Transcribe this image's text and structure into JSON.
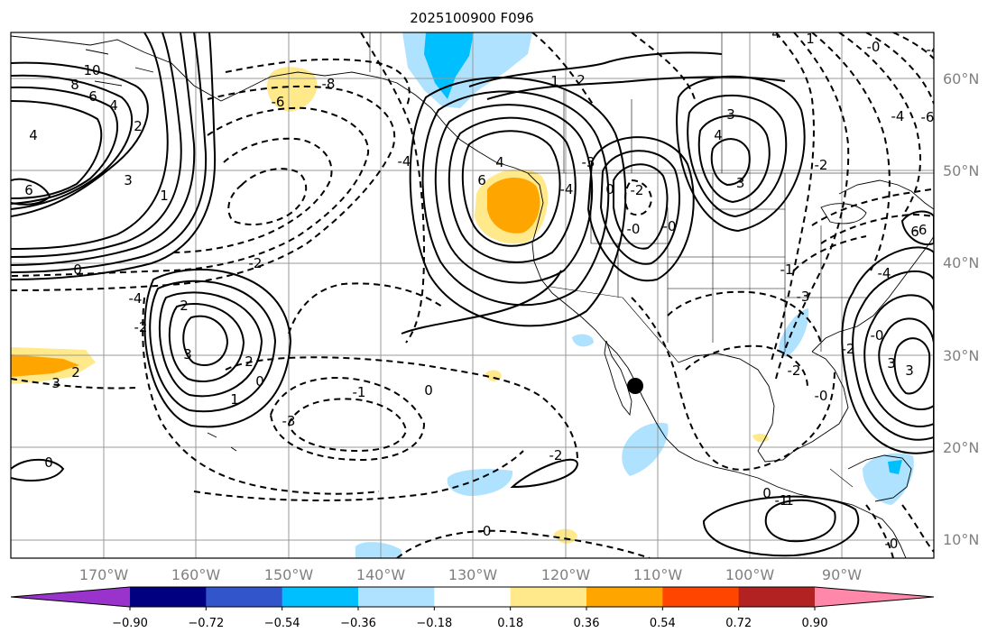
{
  "title": "2025100900 F096",
  "map": {
    "lat_labels": [
      "60°N",
      "50°N",
      "40°N",
      "30°N",
      "20°N",
      "10°N"
    ],
    "lon_labels": [
      "170°W",
      "160°W",
      "150°W",
      "140°W",
      "130°W",
      "120°W",
      "110°W",
      "100°W",
      "90°W"
    ],
    "contour_labels": [
      "10",
      "8",
      "6",
      "4",
      "2",
      "6",
      "4",
      "3",
      "1",
      "0",
      "2",
      "0",
      "3",
      "2",
      "1",
      "2",
      "3",
      "0",
      "-8",
      "-6",
      "-4",
      "-2",
      "-4",
      "-2",
      "-3",
      "-1",
      "0",
      "-2",
      "-0",
      "-1",
      "-2",
      "-3",
      "-4",
      "-6",
      "2",
      "1",
      "-0",
      "-3",
      "-4",
      "-2",
      "6",
      "4",
      "3",
      "4",
      "3",
      "6",
      "-0",
      "0",
      "-0",
      "1",
      "0",
      "3",
      "-0",
      "-2",
      "-1",
      "-0",
      "-0",
      "1",
      "-2",
      "-4",
      "-6",
      "4",
      "-3",
      "-4"
    ],
    "marker": "black-dot"
  },
  "colorbar": {
    "tick_labels": [
      "−0.90",
      "−0.72",
      "−0.54",
      "−0.36",
      "−0.18",
      "0.18",
      "0.36",
      "0.54",
      "0.72",
      "0.90"
    ],
    "colors": [
      "#9933cc",
      "#000080",
      "#3355cc",
      "#00bfff",
      "#aee2ff",
      "#ffffff",
      "#ffe98a",
      "#ffa500",
      "#ff4500",
      "#b22222",
      "#ff88aa"
    ]
  }
}
